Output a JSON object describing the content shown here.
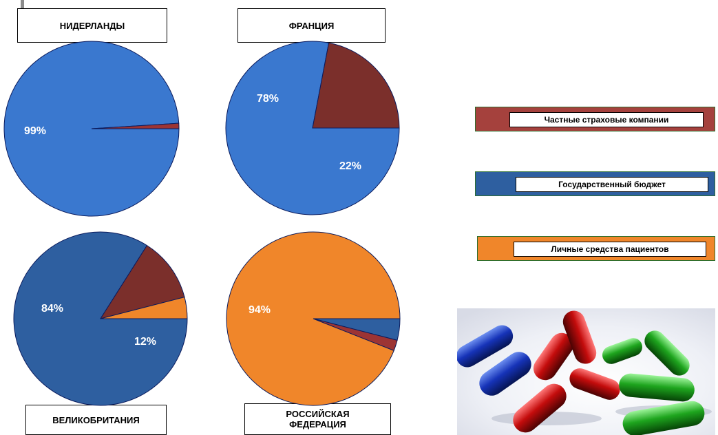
{
  "chart_data": [
    {
      "type": "pie",
      "title": "НИДЕРЛАНДЫ",
      "slices": [
        {
          "label": "Государственный бюджет",
          "value": 99,
          "color": "#3a78cf",
          "display": "99%"
        },
        {
          "label": "Частные страховые компании",
          "value": 1,
          "color": "#9c3434",
          "display": ""
        }
      ]
    },
    {
      "type": "pie",
      "title": "ФРАНЦИЯ",
      "slices": [
        {
          "label": "Государственный бюджет",
          "value": 78,
          "color": "#3a78cf",
          "display": "78%"
        },
        {
          "label": "Частные страховые компании",
          "value": 22,
          "color": "#7b2f2b",
          "display": "22%"
        }
      ]
    },
    {
      "type": "pie",
      "title": "ВЕЛИКОБРИТАНИЯ",
      "slices": [
        {
          "label": "Государственный бюджет",
          "value": 84,
          "color": "#2e5fa0",
          "display": "84%"
        },
        {
          "label": "Частные страховые компании",
          "value": 12,
          "color": "#7b2f2b",
          "display": "12%"
        },
        {
          "label": "Личные средства пациентов",
          "value": 4,
          "color": "#f0862a",
          "display": ""
        }
      ]
    },
    {
      "type": "pie",
      "title": "РОССИЙСКАЯ ФЕДЕРАЦИЯ",
      "slices": [
        {
          "label": "Государственный бюджет",
          "value": 4,
          "color": "#2e5fa0",
          "display": ""
        },
        {
          "label": "Частные страховые компании",
          "value": 2,
          "color": "#9c3434",
          "display": ""
        },
        {
          "label": "Личные средства пациентов",
          "value": 94,
          "color": "#f0862a",
          "display": "94%"
        }
      ]
    }
  ],
  "legend": [
    {
      "label": "Частные страховые компании",
      "color": "#a5413d"
    },
    {
      "label": "Государственный бюджет",
      "color": "#2e5fa0"
    },
    {
      "label": "Личные средства пациентов",
      "color": "#f0862a"
    }
  ],
  "image": {
    "icon": "capsules-image"
  }
}
